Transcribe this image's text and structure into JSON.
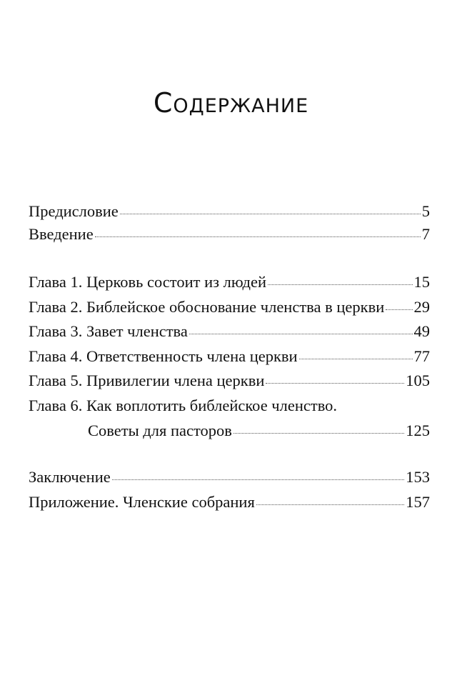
{
  "title": "Содержание",
  "entries": [
    {
      "label": "Предисловие",
      "page": "5"
    },
    {
      "label": "Введение",
      "page": "7"
    },
    {
      "label": "Глава 1. Церковь состоит из людей",
      "page": "15"
    },
    {
      "label": "Глава 2. Библейское обоснование членства в церкви",
      "page": "29"
    },
    {
      "label": "Глава 3. Завет членства",
      "page": "49"
    },
    {
      "label": "Глава 4. Ответственность члена церкви",
      "page": "77"
    },
    {
      "label": "Глава 5. Привилегии члена церкви",
      "page": "105"
    },
    {
      "label": "Глава 6. Как воплотить библейское членство.",
      "label_cont": "Советы для пасторов",
      "page": "125"
    },
    {
      "label": "Заключение",
      "page": "153"
    },
    {
      "label": "Приложение. Членские собрания",
      "page": "157"
    }
  ]
}
